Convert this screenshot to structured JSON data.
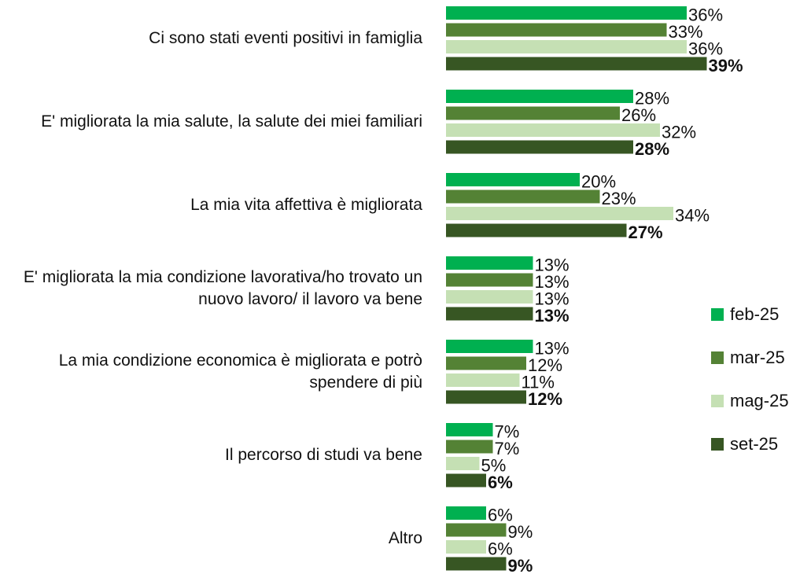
{
  "chart_data": {
    "type": "bar",
    "orientation": "horizontal",
    "categories": [
      "Ci sono stati eventi positivi in famiglia",
      "E' migliorata la mia salute, la salute dei miei familiari",
      "La mia vita affettiva è migliorata",
      "E' migliorata la mia condizione lavorativa/ho trovato un nuovo lavoro/ il lavoro va bene",
      "La mia condizione economica è migliorata e potrò spendere di più",
      "Il percorso di studi va bene",
      "Altro"
    ],
    "series": [
      {
        "name": "feb-25",
        "color": "#00b050",
        "values": [
          36,
          28,
          20,
          13,
          13,
          7,
          6
        ],
        "value_labels": [
          "36%",
          "28%",
          "20%",
          "13%",
          "13%",
          "7%",
          "6%"
        ]
      },
      {
        "name": "mar-25",
        "color": "#548235",
        "values": [
          33,
          26,
          23,
          13,
          12,
          7,
          9
        ],
        "value_labels": [
          "33%",
          "26%",
          "23%",
          "13%",
          "12%",
          "7%",
          "9%"
        ]
      },
      {
        "name": "mag-25",
        "color": "#c5e0b4",
        "values": [
          36,
          32,
          34,
          13,
          11,
          5,
          6
        ],
        "value_labels": [
          "36%",
          "32%",
          "34%",
          "13%",
          "11%",
          "5%",
          "6%"
        ]
      },
      {
        "name": "set-25",
        "color": "#375623",
        "values": [
          39,
          28,
          27,
          13,
          12,
          6,
          9
        ],
        "value_labels": [
          "39%",
          "28%",
          "27%",
          "13%",
          "12%",
          "6%",
          "9%"
        ],
        "bold_labels": true
      }
    ],
    "legend": "right"
  }
}
